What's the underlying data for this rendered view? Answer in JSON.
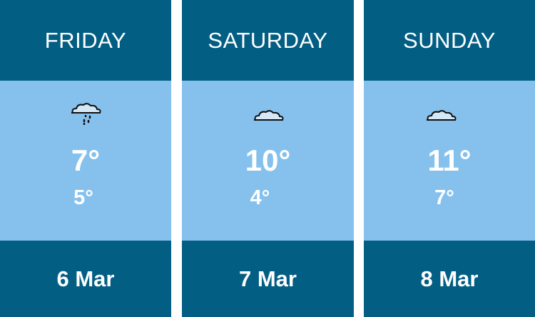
{
  "days": [
    {
      "name": "FRIDAY",
      "icon": "cloud-rain-icon",
      "high": "7°",
      "low": "5°",
      "date": "6 Mar"
    },
    {
      "name": "SATURDAY",
      "icon": "cloud-icon",
      "high": "10°",
      "low": "4°",
      "date": "7 Mar"
    },
    {
      "name": "SUNDAY",
      "icon": "cloud-icon",
      "high": "11°",
      "low": "7°",
      "date": "8 Mar"
    }
  ],
  "colors": {
    "header": "#035e84",
    "body": "#86c1ed",
    "text": "#ffffff"
  }
}
